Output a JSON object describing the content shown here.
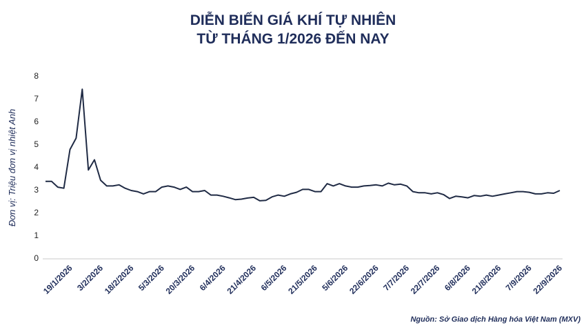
{
  "chart_data": {
    "type": "line",
    "title_lines": [
      "DIỄN BIẾN GIÁ KHÍ TỰ NHIÊN",
      "TỪ THÁNG 1/2026 ĐẾN NAY"
    ],
    "y_label": "Đơn vị: Triệu đơn vị nhiệt Anh",
    "source": "Nguồn: Sở Giao dịch Hàng hóa Việt Nam (MXV)",
    "categories": [
      null,
      null,
      null,
      null,
      "19/1/2026",
      null,
      null,
      null,
      null,
      "3/2/2026",
      null,
      null,
      null,
      null,
      "18/2/2026",
      null,
      null,
      null,
      null,
      "5/3/2026",
      null,
      null,
      null,
      null,
      "20/3/2026",
      null,
      null,
      null,
      null,
      "6/4/2026",
      null,
      null,
      null,
      null,
      "21/4/2026",
      null,
      null,
      null,
      null,
      "6/5/2026",
      null,
      null,
      null,
      null,
      "21/5/2026",
      null,
      null,
      null,
      null,
      "5/6/2026",
      null,
      null,
      null,
      null,
      "22/6/2026",
      null,
      null,
      null,
      null,
      "7/7/2026",
      null,
      null,
      null,
      null,
      "22/7/2026",
      null,
      null,
      null,
      null,
      "6/8/2026",
      null,
      null,
      null,
      null,
      "21/8/2026",
      null,
      null,
      null,
      null,
      "7/9/2026",
      null,
      null,
      null,
      null,
      "22/9/2026"
    ],
    "series": [
      {
        "name": "Khí tự nhiên",
        "color": "#1f2a44",
        "values": [
          3.4,
          3.4,
          3.15,
          3.1,
          4.8,
          5.3,
          7.45,
          3.9,
          4.35,
          3.45,
          3.2,
          3.2,
          3.25,
          3.1,
          3.0,
          2.95,
          2.85,
          2.95,
          2.95,
          3.15,
          3.2,
          3.15,
          3.05,
          3.15,
          2.95,
          2.95,
          3.0,
          2.8,
          2.8,
          2.75,
          2.68,
          2.6,
          2.62,
          2.67,
          2.7,
          2.55,
          2.57,
          2.72,
          2.8,
          2.75,
          2.85,
          2.92,
          3.05,
          3.05,
          2.95,
          2.95,
          3.3,
          3.2,
          3.3,
          3.2,
          3.15,
          3.15,
          3.2,
          3.22,
          3.25,
          3.2,
          3.32,
          3.25,
          3.28,
          3.2,
          2.95,
          2.9,
          2.9,
          2.85,
          2.9,
          2.82,
          2.65,
          2.75,
          2.72,
          2.68,
          2.78,
          2.75,
          2.8,
          2.75,
          2.8,
          2.85,
          2.9,
          2.95,
          2.95,
          2.92,
          2.85,
          2.85,
          2.9,
          2.88,
          3.0
        ]
      }
    ],
    "ylim": [
      0,
      8
    ],
    "yticks": [
      0,
      1,
      2,
      3,
      4,
      5,
      6,
      7,
      8
    ],
    "grid": false
  }
}
